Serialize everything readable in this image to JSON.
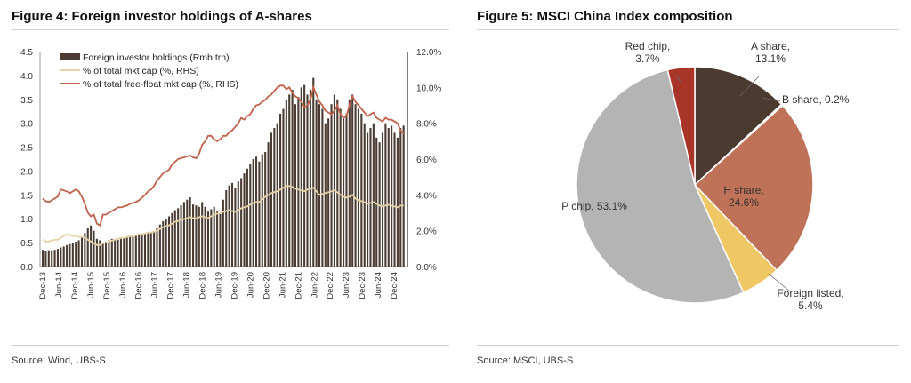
{
  "fig4": {
    "title": "Figure 4: Foreign investor holdings of A-shares",
    "source": "Source: Wind, UBS-S",
    "left_ticks": [
      "0.0",
      "0.5",
      "1.0",
      "1.5",
      "2.0",
      "2.5",
      "3.0",
      "3.5",
      "4.0",
      "4.5"
    ],
    "right_ticks": [
      "0.0%",
      "2.0%",
      "4.0%",
      "6.0%",
      "8.0%",
      "10.0%",
      "12.0%"
    ],
    "x_ticks": [
      "Dec-13",
      "Jun-14",
      "Dec-14",
      "Jun-15",
      "Dec-15",
      "Jun-16",
      "Dec-16",
      "Jun-17",
      "Dec-17",
      "Jun-18",
      "Dec-18",
      "Jun-19",
      "Dec-19",
      "Jun-20",
      "Dec-20",
      "Jun-21",
      "Dec-21",
      "Jun-22",
      "Dec-22",
      "Jun-23",
      "Dec-23",
      "Jun-24",
      "Dec-24"
    ],
    "legend": [
      "Foreign investor holdings (Rmb trn)",
      "% of total mkt cap (%, RHS)",
      "% of total free-float mkt cap (%, RHS)"
    ],
    "colors": {
      "bars": "#4a3c32",
      "total": "#e8d3a8",
      "freefloat": "#c0624a"
    }
  },
  "chart_data": [
    {
      "type": "bar",
      "title": "Figure 4: Foreign investor holdings of A-shares",
      "ylim": [
        0,
        4.5
      ],
      "y2lim": [
        0,
        12
      ],
      "x_start": "Dec-13",
      "x_end": "Feb-25",
      "series": [
        {
          "name": "Foreign investor holdings (Rmb trn)",
          "axis": "left",
          "type": "bar",
          "values": [
            0.35,
            0.33,
            0.34,
            0.34,
            0.35,
            0.37,
            0.4,
            0.42,
            0.45,
            0.47,
            0.5,
            0.52,
            0.55,
            0.62,
            0.7,
            0.8,
            0.86,
            0.75,
            0.58,
            0.55,
            0.5,
            0.52,
            0.55,
            0.58,
            0.55,
            0.56,
            0.58,
            0.6,
            0.61,
            0.62,
            0.62,
            0.64,
            0.66,
            0.68,
            0.7,
            0.72,
            0.7,
            0.74,
            0.8,
            0.88,
            0.95,
            1.0,
            1.05,
            1.12,
            1.18,
            1.22,
            1.28,
            1.35,
            1.4,
            1.45,
            1.3,
            1.28,
            1.25,
            1.35,
            1.25,
            1.15,
            1.2,
            1.25,
            1.15,
            1.1,
            1.4,
            1.6,
            1.7,
            1.75,
            1.65,
            1.78,
            1.85,
            1.95,
            2.05,
            2.15,
            2.25,
            2.3,
            2.2,
            2.35,
            2.4,
            2.6,
            2.8,
            2.9,
            3.0,
            3.2,
            3.3,
            3.5,
            3.6,
            3.7,
            3.4,
            3.55,
            3.75,
            3.8,
            3.6,
            3.7,
            3.95,
            3.5,
            3.4,
            3.3,
            3.0,
            3.1,
            3.4,
            3.6,
            3.5,
            3.3,
            3.1,
            3.2,
            3.5,
            3.6,
            3.4,
            3.3,
            3.2,
            3.0,
            2.8,
            2.9,
            3.0,
            2.7,
            2.6,
            2.8,
            3.0,
            2.9,
            2.95,
            2.8,
            2.7,
            2.9,
            2.95
          ]
        },
        {
          "name": "% of total mkt cap (%, RHS)",
          "axis": "right",
          "type": "line",
          "values": [
            1.5,
            1.4,
            1.4,
            1.45,
            1.5,
            1.5,
            1.6,
            1.7,
            1.8,
            1.75,
            1.7,
            1.7,
            1.65,
            1.65,
            1.6,
            1.5,
            1.4,
            1.3,
            1.2,
            1.2,
            1.3,
            1.35,
            1.4,
            1.45,
            1.5,
            1.55,
            1.6,
            1.6,
            1.65,
            1.7,
            1.7,
            1.75,
            1.8,
            1.8,
            1.85,
            1.9,
            1.9,
            1.95,
            2.0,
            2.1,
            2.2,
            2.25,
            2.3,
            2.4,
            2.5,
            2.55,
            2.6,
            2.65,
            2.7,
            2.75,
            2.7,
            2.7,
            2.75,
            2.8,
            2.75,
            2.7,
            2.8,
            2.9,
            2.95,
            3.0,
            3.05,
            3.1,
            3.15,
            3.1,
            3.05,
            3.15,
            3.25,
            3.3,
            3.35,
            3.45,
            3.55,
            3.6,
            3.6,
            3.75,
            3.9,
            4.0,
            4.1,
            4.15,
            4.2,
            4.3,
            4.4,
            4.5,
            4.5,
            4.45,
            4.35,
            4.3,
            4.25,
            4.2,
            4.3,
            4.35,
            4.4,
            4.2,
            4.0,
            4.05,
            4.1,
            4.15,
            4.2,
            4.25,
            4.15,
            4.0,
            3.9,
            3.85,
            3.9,
            4.0,
            3.8,
            3.7,
            3.65,
            3.6,
            3.5,
            3.55,
            3.6,
            3.5,
            3.4,
            3.35,
            3.4,
            3.45,
            3.4,
            3.35,
            3.3,
            3.4,
            3.4
          ]
        },
        {
          "name": "% of total free-float mkt cap (%, RHS)",
          "axis": "right",
          "type": "line",
          "values": [
            3.8,
            3.65,
            3.6,
            3.7,
            3.8,
            3.9,
            4.3,
            4.25,
            4.2,
            4.1,
            4.2,
            4.3,
            4.2,
            3.9,
            3.5,
            3.0,
            2.8,
            2.9,
            2.4,
            2.3,
            2.9,
            2.9,
            3.0,
            3.1,
            3.2,
            3.3,
            3.3,
            3.35,
            3.4,
            3.5,
            3.55,
            3.6,
            3.7,
            3.85,
            4.0,
            4.2,
            4.3,
            4.5,
            4.8,
            5.0,
            5.2,
            5.3,
            5.4,
            5.7,
            5.85,
            6.0,
            6.05,
            6.1,
            6.15,
            6.2,
            6.1,
            6.05,
            6.3,
            6.8,
            7.0,
            7.3,
            7.3,
            7.1,
            7.0,
            7.1,
            7.3,
            7.3,
            7.5,
            7.6,
            7.8,
            8.0,
            8.3,
            8.2,
            8.4,
            8.5,
            8.8,
            9.0,
            9.05,
            9.2,
            9.3,
            9.5,
            9.6,
            9.8,
            10.0,
            10.1,
            10.1,
            9.9,
            10.0,
            9.7,
            9.5,
            9.4,
            9.2,
            8.9,
            9.0,
            9.3,
            10.0,
            9.6,
            9.2,
            9.0,
            8.7,
            8.6,
            8.5,
            8.7,
            9.0,
            8.5,
            8.3,
            8.4,
            9.0,
            9.5,
            9.2,
            9.0,
            8.8,
            8.6,
            8.4,
            8.5,
            8.6,
            8.3,
            8.2,
            8.1,
            8.3,
            8.2,
            8.2,
            8.1,
            8.0,
            7.6,
            7.4
          ]
        }
      ]
    },
    {
      "type": "pie",
      "title": "Figure 5: MSCI China Index composition",
      "slices": [
        {
          "label": "A share",
          "value": 13.1,
          "text": "13.1%",
          "color": "#4a3a30"
        },
        {
          "label": "B share",
          "value": 0.2,
          "text": "0.2%",
          "color": "#7b5a48"
        },
        {
          "label": "H share",
          "value": 24.6,
          "text": "24.6%",
          "color": "#c07258"
        },
        {
          "label": "Foreign listed",
          "value": 5.4,
          "text": "5.4%",
          "color": "#efc865"
        },
        {
          "label": "P chip",
          "value": 53.1,
          "text": "53.1%",
          "color": "#b4b4b4"
        },
        {
          "label": "Red chip",
          "value": 3.7,
          "text": "3.7%",
          "color": "#a93428"
        }
      ]
    }
  ],
  "fig5": {
    "title": "Figure 5: MSCI China Index composition",
    "source": "Source: MSCI, UBS-S"
  }
}
